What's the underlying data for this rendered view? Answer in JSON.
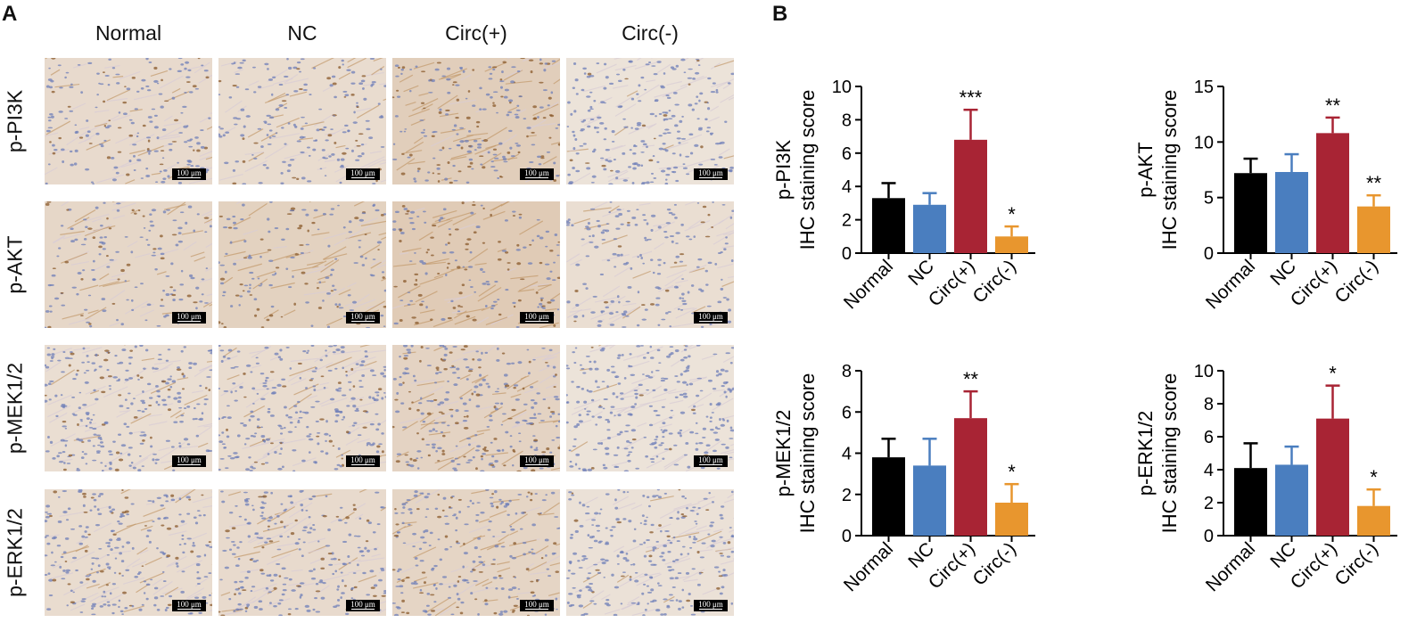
{
  "panels": {
    "a": "A",
    "b": "B"
  },
  "micrographs": {
    "columns": [
      "Normal",
      "NC",
      "Circ(+)",
      "Circ(-)"
    ],
    "rows": [
      "p-PI3K",
      "p-AKT",
      "p-MEK1/2",
      "p-ERK1/2"
    ],
    "scale_label": "100 μm"
  },
  "colors": {
    "Normal": "#000000",
    "NC": "#4a7ebf",
    "Circ(+)": "#a82434",
    "Circ(-)": "#e8962e"
  },
  "chart_data": [
    {
      "type": "bar",
      "ylabel": [
        "p-PI3K",
        "IHC staining score"
      ],
      "categories": [
        "Normal",
        "NC",
        "Circ(+)",
        "Circ(-)"
      ],
      "values": [
        3.3,
        2.9,
        6.8,
        1.0
      ],
      "errors": [
        0.9,
        0.7,
        1.8,
        0.6
      ],
      "significance": [
        "",
        "",
        "***",
        "*"
      ],
      "ylim": [
        0,
        10
      ],
      "yticks": [
        0,
        2,
        4,
        6,
        8,
        10
      ]
    },
    {
      "type": "bar",
      "ylabel": [
        "p-AKT",
        "IHC staining score"
      ],
      "categories": [
        "Normal",
        "NC",
        "Circ(+)",
        "Circ(-)"
      ],
      "values": [
        7.2,
        7.3,
        10.8,
        4.2
      ],
      "errors": [
        1.3,
        1.6,
        1.4,
        1.0
      ],
      "significance": [
        "",
        "",
        "**",
        "**"
      ],
      "ylim": [
        0,
        15
      ],
      "yticks": [
        0,
        5,
        10,
        15
      ]
    },
    {
      "type": "bar",
      "ylabel": [
        "p-MEK1/2",
        "IHC staining score"
      ],
      "categories": [
        "Normal",
        "NC",
        "Circ(+)",
        "Circ(-)"
      ],
      "values": [
        3.8,
        3.4,
        5.7,
        1.6
      ],
      "errors": [
        0.9,
        1.3,
        1.3,
        0.9
      ],
      "significance": [
        "",
        "",
        "**",
        "*"
      ],
      "ylim": [
        0,
        8
      ],
      "yticks": [
        0,
        2,
        4,
        6,
        8
      ]
    },
    {
      "type": "bar",
      "ylabel": [
        "p-ERK1/2",
        "IHC staining score"
      ],
      "categories": [
        "Normal",
        "NC",
        "Circ(+)",
        "Circ(-)"
      ],
      "values": [
        4.1,
        4.3,
        7.1,
        1.8
      ],
      "errors": [
        1.5,
        1.1,
        2.0,
        1.0
      ],
      "significance": [
        "",
        "",
        "*",
        "*"
      ],
      "ylim": [
        0,
        10
      ],
      "yticks": [
        0,
        2,
        4,
        6,
        8,
        10
      ]
    }
  ]
}
